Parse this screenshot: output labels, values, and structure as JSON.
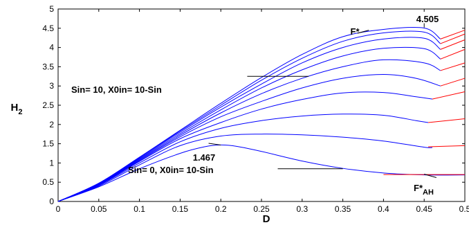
{
  "chart_data": {
    "type": "line",
    "xlabel": "D",
    "ylabel": "H",
    "ylabel_sub": "2",
    "xlim": [
      0,
      0.5
    ],
    "ylim": [
      0,
      5
    ],
    "xticks": [
      "0",
      "0.05",
      "0.1",
      "0.15",
      "0.2",
      "0.25",
      "0.3",
      "0.35",
      "0.4",
      "0.45",
      "0.5"
    ],
    "yticks": [
      "0",
      "0.5",
      "1",
      "1.5",
      "2",
      "2.5",
      "3",
      "3.5",
      "4",
      "4.5",
      "5"
    ],
    "grid": false,
    "colors": {
      "blue_curves": "#0000ff",
      "red_curves": "#ff0000",
      "annotation_line": "#000000"
    },
    "series": [
      {
        "values": [
          [
            0,
            0
          ],
          [
            0.05,
            0.38
          ],
          [
            0.1,
            0.85
          ],
          [
            0.15,
            1.25
          ],
          [
            0.18,
            1.42
          ],
          [
            0.2,
            1.467
          ],
          [
            0.22,
            1.43
          ],
          [
            0.25,
            1.3
          ],
          [
            0.3,
            1.05
          ],
          [
            0.35,
            0.86
          ],
          [
            0.4,
            0.74
          ],
          [
            0.45,
            0.69
          ],
          [
            0.5,
            0.69
          ]
        ]
      },
      {
        "values": [
          [
            0,
            0
          ],
          [
            0.05,
            0.4
          ],
          [
            0.1,
            0.95
          ],
          [
            0.15,
            1.45
          ],
          [
            0.2,
            1.7
          ],
          [
            0.25,
            1.75
          ],
          [
            0.3,
            1.73
          ],
          [
            0.35,
            1.67
          ],
          [
            0.4,
            1.57
          ],
          [
            0.45,
            1.41
          ],
          [
            0.46,
            1.4
          ]
        ]
      },
      {
        "values": [
          [
            0,
            0
          ],
          [
            0.05,
            0.42
          ],
          [
            0.1,
            1.0
          ],
          [
            0.15,
            1.55
          ],
          [
            0.2,
            1.9
          ],
          [
            0.25,
            2.1
          ],
          [
            0.3,
            2.22
          ],
          [
            0.35,
            2.27
          ],
          [
            0.4,
            2.24
          ],
          [
            0.44,
            2.1
          ],
          [
            0.455,
            2.05
          ]
        ]
      },
      {
        "values": [
          [
            0,
            0
          ],
          [
            0.05,
            0.43
          ],
          [
            0.1,
            1.04
          ],
          [
            0.15,
            1.63
          ],
          [
            0.2,
            2.05
          ],
          [
            0.25,
            2.4
          ],
          [
            0.3,
            2.65
          ],
          [
            0.35,
            2.82
          ],
          [
            0.4,
            2.83
          ],
          [
            0.44,
            2.72
          ],
          [
            0.46,
            2.66
          ]
        ]
      },
      {
        "values": [
          [
            0,
            0
          ],
          [
            0.05,
            0.44
          ],
          [
            0.1,
            1.06
          ],
          [
            0.15,
            1.68
          ],
          [
            0.2,
            2.2
          ],
          [
            0.25,
            2.6
          ],
          [
            0.3,
            2.95
          ],
          [
            0.35,
            3.2
          ],
          [
            0.4,
            3.3
          ],
          [
            0.44,
            3.2
          ],
          [
            0.47,
            3.0
          ]
        ]
      },
      {
        "values": [
          [
            0,
            0
          ],
          [
            0.05,
            0.45
          ],
          [
            0.1,
            1.08
          ],
          [
            0.15,
            1.72
          ],
          [
            0.2,
            2.3
          ],
          [
            0.25,
            2.8
          ],
          [
            0.3,
            3.2
          ],
          [
            0.35,
            3.5
          ],
          [
            0.4,
            3.68
          ],
          [
            0.45,
            3.6
          ],
          [
            0.47,
            3.4
          ]
        ]
      },
      {
        "values": [
          [
            0,
            0
          ],
          [
            0.05,
            0.46
          ],
          [
            0.1,
            1.1
          ],
          [
            0.15,
            1.76
          ],
          [
            0.2,
            2.38
          ],
          [
            0.25,
            2.95
          ],
          [
            0.3,
            3.42
          ],
          [
            0.35,
            3.78
          ],
          [
            0.4,
            3.98
          ],
          [
            0.45,
            3.97
          ],
          [
            0.47,
            3.7
          ]
        ]
      },
      {
        "values": [
          [
            0,
            0
          ],
          [
            0.05,
            0.465
          ],
          [
            0.1,
            1.12
          ],
          [
            0.15,
            1.8
          ],
          [
            0.2,
            2.45
          ],
          [
            0.25,
            3.05
          ],
          [
            0.3,
            3.6
          ],
          [
            0.35,
            4.0
          ],
          [
            0.4,
            4.22
          ],
          [
            0.45,
            4.24
          ],
          [
            0.47,
            3.95
          ]
        ]
      },
      {
        "values": [
          [
            0,
            0
          ],
          [
            0.05,
            0.47
          ],
          [
            0.1,
            1.14
          ],
          [
            0.15,
            1.83
          ],
          [
            0.2,
            2.5
          ],
          [
            0.25,
            3.15
          ],
          [
            0.3,
            3.72
          ],
          [
            0.35,
            4.16
          ],
          [
            0.4,
            4.38
          ],
          [
            0.45,
            4.4
          ],
          [
            0.47,
            4.1
          ]
        ]
      },
      {
        "values": [
          [
            0,
            0
          ],
          [
            0.05,
            0.475
          ],
          [
            0.1,
            1.15
          ],
          [
            0.15,
            1.85
          ],
          [
            0.2,
            2.55
          ],
          [
            0.25,
            3.22
          ],
          [
            0.3,
            3.82
          ],
          [
            0.35,
            4.28
          ],
          [
            0.4,
            4.47
          ],
          [
            0.45,
            4.505
          ],
          [
            0.47,
            4.22
          ]
        ]
      }
    ],
    "red_series": [
      {
        "values": [
          [
            0.4,
            0.7
          ],
          [
            0.5,
            0.7
          ]
        ]
      },
      {
        "values": [
          [
            0.455,
            1.42
          ],
          [
            0.5,
            1.45
          ]
        ]
      },
      {
        "values": [
          [
            0.455,
            2.05
          ],
          [
            0.5,
            2.15
          ]
        ]
      },
      {
        "values": [
          [
            0.46,
            2.66
          ],
          [
            0.5,
            2.85
          ]
        ]
      },
      {
        "values": [
          [
            0.47,
            3.0
          ],
          [
            0.5,
            3.2
          ]
        ]
      },
      {
        "values": [
          [
            0.47,
            3.4
          ],
          [
            0.5,
            3.6
          ]
        ]
      },
      {
        "values": [
          [
            0.47,
            3.7
          ],
          [
            0.5,
            3.95
          ]
        ]
      },
      {
        "values": [
          [
            0.47,
            3.95
          ],
          [
            0.5,
            4.2
          ]
        ]
      },
      {
        "values": [
          [
            0.47,
            4.1
          ],
          [
            0.5,
            4.35
          ]
        ]
      },
      {
        "values": [
          [
            0.47,
            4.22
          ],
          [
            0.5,
            4.45
          ]
        ]
      }
    ],
    "annotations": {
      "peak_top_value": "4.505",
      "peak_bottom_value": "1.467",
      "f_star": "F*",
      "f_star_ah_main": "F*",
      "f_star_ah_sub": "AH",
      "top_curve_label": "Sin= 10, X0in= 10-Sin",
      "bottom_curve_label": "Sin= 0, X0in= 10-Sin"
    }
  }
}
